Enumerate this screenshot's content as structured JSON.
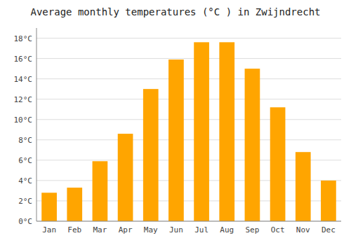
{
  "chart_data": {
    "type": "bar",
    "title": "Average monthly temperatures (°C ) in Zwijndrecht",
    "categories": [
      "Jan",
      "Feb",
      "Mar",
      "Apr",
      "May",
      "Jun",
      "Jul",
      "Aug",
      "Sep",
      "Oct",
      "Nov",
      "Dec"
    ],
    "values": [
      2.8,
      3.3,
      5.9,
      8.6,
      13.0,
      15.9,
      17.6,
      17.6,
      15.0,
      11.2,
      6.8,
      4.0
    ],
    "color": "#FFA500",
    "ylim": [
      0,
      19
    ],
    "yticks": [
      {
        "value": 0,
        "label": "0°C"
      },
      {
        "value": 2,
        "label": "2°C"
      },
      {
        "value": 4,
        "label": "4°C"
      },
      {
        "value": 6,
        "label": "6°C"
      },
      {
        "value": 8,
        "label": "8°C"
      },
      {
        "value": 10,
        "label": "10°C"
      },
      {
        "value": 12,
        "label": "12°C"
      },
      {
        "value": 14,
        "label": "14°C"
      },
      {
        "value": 16,
        "label": "16°C"
      },
      {
        "value": 18,
        "label": "18°C"
      }
    ],
    "grid": true
  }
}
